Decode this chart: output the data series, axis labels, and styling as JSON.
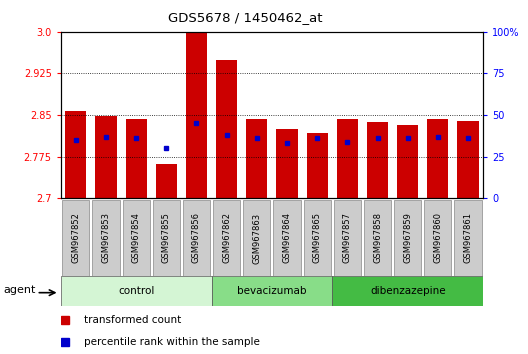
{
  "title": "GDS5678 / 1450462_at",
  "samples": [
    "GSM967852",
    "GSM967853",
    "GSM967854",
    "GSM967855",
    "GSM967856",
    "GSM967862",
    "GSM967863",
    "GSM967864",
    "GSM967865",
    "GSM967857",
    "GSM967858",
    "GSM967859",
    "GSM967860",
    "GSM967861"
  ],
  "transformed_count": [
    2.858,
    2.848,
    2.843,
    2.762,
    3.0,
    2.95,
    2.843,
    2.825,
    2.818,
    2.843,
    2.838,
    2.832,
    2.843,
    2.84
  ],
  "percentile_rank": [
    35,
    37,
    36,
    30,
    45,
    38,
    36,
    33,
    36,
    34,
    36,
    36,
    37,
    36
  ],
  "groups": [
    {
      "name": "control",
      "start": 0,
      "end": 4,
      "color": "#d4f5d4"
    },
    {
      "name": "bevacizumab",
      "start": 5,
      "end": 8,
      "color": "#88dd88"
    },
    {
      "name": "dibenzazepine",
      "start": 9,
      "end": 13,
      "color": "#44bb44"
    }
  ],
  "ylim_left": [
    2.7,
    3.0
  ],
  "ylim_right": [
    0,
    100
  ],
  "yticks_left": [
    2.7,
    2.775,
    2.85,
    2.925,
    3.0
  ],
  "yticks_right": [
    0,
    25,
    50,
    75,
    100
  ],
  "bar_color": "#cc0000",
  "dot_color": "#0000cc",
  "bar_width": 0.7,
  "plot_bg_color": "#ffffff",
  "tick_label_bg": "#cccccc",
  "agent_label": "agent",
  "legend_items": [
    {
      "label": "transformed count",
      "color": "#cc0000"
    },
    {
      "label": "percentile rank within the sample",
      "color": "#0000cc"
    }
  ]
}
